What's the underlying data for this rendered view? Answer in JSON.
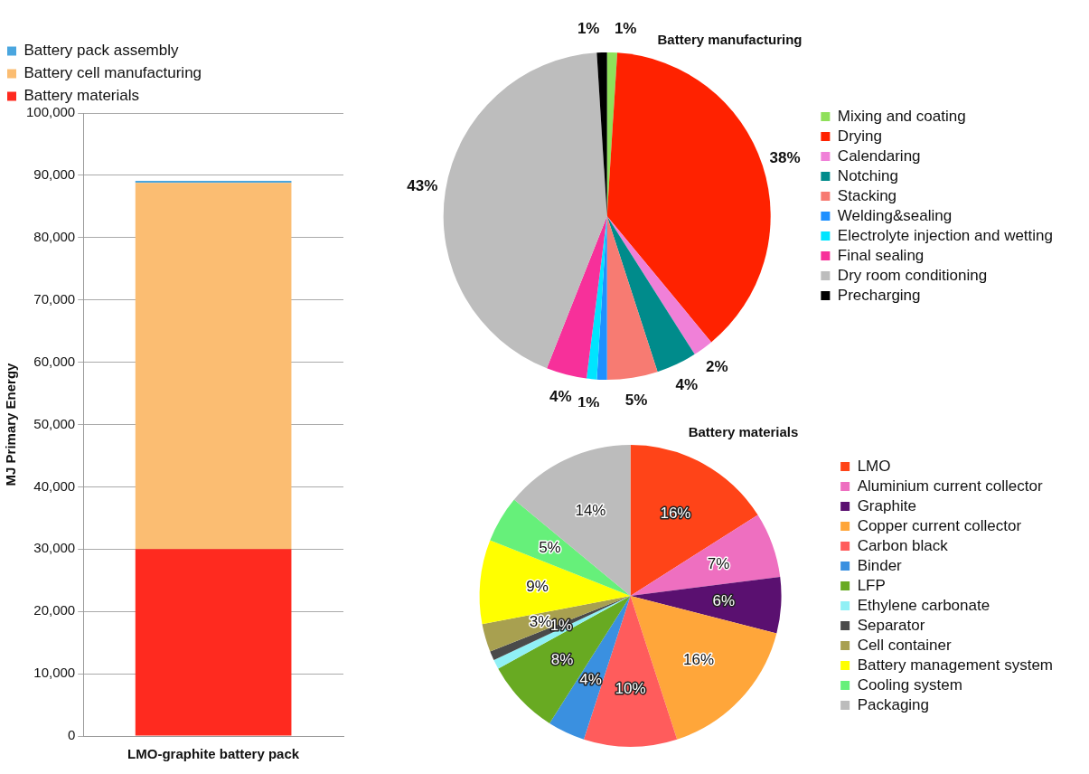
{
  "chart_data": [
    {
      "type": "bar",
      "stacked": true,
      "categories": [
        "LMO-graphite battery pack"
      ],
      "ylabel": "MJ Primary Energy",
      "ylim": [
        0,
        100000
      ],
      "yticks": [
        0,
        {
          "value": 10000,
          "label": "10,000"
        },
        {
          "value": 20000,
          "label": "20,000"
        },
        {
          "value": 30000,
          "label": "30,000"
        },
        {
          "value": 40000,
          "label": "40,000"
        },
        {
          "value": 50000,
          "label": "50,000"
        },
        {
          "value": 60000,
          "label": "60,000"
        },
        {
          "value": 70000,
          "label": "70,000"
        },
        {
          "value": 80000,
          "label": "80,000"
        },
        {
          "value": 90000,
          "label": "90,000"
        },
        {
          "value": 100000,
          "label": "100,000"
        }
      ],
      "grid": "y",
      "legend": "top",
      "series": [
        {
          "name": "Battery materials",
          "color": "#ff2a1f",
          "values": [
            30000
          ]
        },
        {
          "name": "Battery cell manufacturing",
          "color": "#fbbd72",
          "values": [
            58800
          ]
        },
        {
          "name": "Battery pack assembly",
          "color": "#4aa6df",
          "values": [
            300
          ]
        }
      ]
    },
    {
      "type": "pie",
      "title": "Battery manufacturing",
      "legend": "right",
      "categories": [
        "Mixing and coating",
        "Drying",
        "Calendaring",
        "Notching",
        "Stacking",
        "Welding&sealing",
        "Electrolyte injection and wetting",
        "Final sealing",
        "Dry room conditioning",
        "Precharging"
      ],
      "values": [
        1,
        38,
        2,
        4,
        5,
        1,
        1,
        4,
        43,
        1
      ],
      "value_labels": [
        "1%",
        "38%",
        "2%",
        "4%",
        "5%",
        "1%",
        null,
        "4%",
        "43%",
        "1%"
      ],
      "colors": [
        "#8fe05a",
        "#ff2200",
        "#f080d8",
        "#008b8b",
        "#f77b72",
        "#1e90ff",
        "#00e5ff",
        "#f7309a",
        "#bdbdbd",
        "#000000"
      ]
    },
    {
      "type": "pie",
      "title": "Battery materials",
      "legend": "right",
      "categories": [
        "LMO",
        "Aluminium current collector",
        "Graphite",
        "Copper current collector",
        "Carbon black",
        "Binder",
        "LFP",
        "Ethylene carbonate",
        "Separator",
        "Cell container",
        "Battery management system",
        "Cooling system",
        "Packaging"
      ],
      "values": [
        16,
        7,
        6,
        16,
        10,
        4,
        8,
        1,
        1,
        3,
        9,
        5,
        14
      ],
      "value_labels": [
        "16%",
        "7%",
        "6%",
        "16%",
        "10%",
        "4%",
        "8%",
        null,
        "1%",
        "3%",
        "9%",
        "5%",
        "14%"
      ],
      "colors": [
        "#ff4418",
        "#ee6fc0",
        "#5a1070",
        "#ffa63a",
        "#ff5c5c",
        "#3a90e0",
        "#68aa22",
        "#90f0f5",
        "#4a4a4a",
        "#a8a050",
        "#ffff00",
        "#66f07a",
        "#bcbcbc"
      ]
    }
  ]
}
